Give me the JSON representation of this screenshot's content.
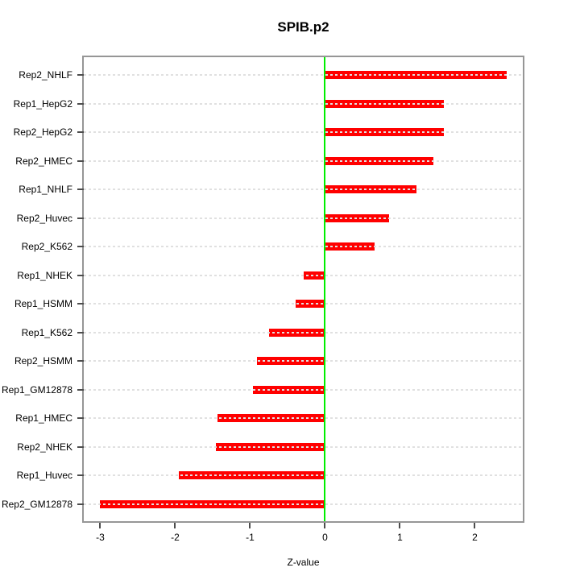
{
  "chart_data": {
    "type": "bar",
    "orientation": "horizontal",
    "title": "SPIB.p2",
    "xlabel": "Z-value",
    "ylabel": "",
    "categories": [
      "Rep2_NHLF",
      "Rep1_HepG2",
      "Rep2_HepG2",
      "Rep2_HMEC",
      "Rep1_NHLF",
      "Rep2_Huvec",
      "Rep2_K562",
      "Rep1_NHEK",
      "Rep1_HSMM",
      "Rep1_K562",
      "Rep2_HSMM",
      "Rep1_GM12878",
      "Rep1_HMEC",
      "Rep2_NHEK",
      "Rep1_Huvec",
      "Rep2_GM12878"
    ],
    "values": [
      2.43,
      1.59,
      1.59,
      1.45,
      1.22,
      0.85,
      0.66,
      -0.28,
      -0.39,
      -0.75,
      -0.91,
      -0.96,
      -1.44,
      -1.46,
      -1.95,
      -3.01
    ],
    "xlim": [
      -3.22,
      2.64
    ],
    "xticks": [
      -3,
      -2,
      -1,
      0,
      1,
      2
    ],
    "grid": true,
    "legend": false,
    "bar_color": "#ff0000",
    "zero_line_color": "#00ee00",
    "grid_color": "#e0e0e0",
    "frame_color": "#969696",
    "tick_color": "#4d4d4d",
    "text_color": "#000000"
  }
}
